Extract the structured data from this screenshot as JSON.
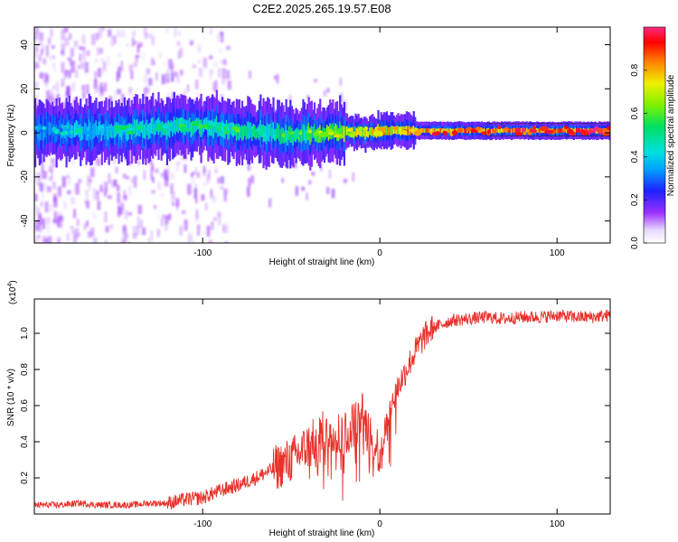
{
  "figure": {
    "title": "C2E2.2025.265.19.57.E08"
  },
  "chart_data": [
    {
      "type": "heatmap",
      "name": "spectrogram",
      "title": "C2E2.2025.265.19.57.E08",
      "xlabel": "Height of straight line (km)",
      "ylabel": "Frequency (Hz)",
      "xlim": [
        -195,
        130
      ],
      "ylim": [
        -50,
        48
      ],
      "xticks": [
        -100,
        0,
        100
      ],
      "yticks": [
        -40,
        -20,
        0,
        20,
        40
      ],
      "grid": false,
      "colorbar": {
        "label": "Normalized spectral amplitude",
        "range": [
          0,
          1
        ],
        "ticks": [
          0.0,
          0.2,
          0.4,
          0.6,
          0.8
        ],
        "colormap": "rainbow"
      },
      "ridge_frequency_hz": {
        "x": [
          -195,
          -150,
          -100,
          -50,
          -20,
          0,
          50,
          100,
          130
        ],
        "y": [
          1,
          1,
          3,
          -1,
          0,
          1,
          1,
          1,
          1
        ]
      },
      "ridge_amplitude": {
        "x": [
          -195,
          -150,
          -100,
          -50,
          -20,
          0,
          50,
          100,
          130
        ],
        "y": [
          0.35,
          0.45,
          0.5,
          0.55,
          0.7,
          0.8,
          0.9,
          0.92,
          0.92
        ]
      }
    },
    {
      "type": "line",
      "name": "snr",
      "xlabel": "Height of straight line (km)",
      "ylabel": "SNR (10 * v/v)",
      "yscale_label": "(x10",
      "yscale_exponent": "4",
      "xlim": [
        -195,
        130
      ],
      "ylim": [
        0,
        1.19
      ],
      "xticks": [
        -100,
        0,
        100
      ],
      "yticks": [
        0.2,
        0.4,
        0.6,
        0.8,
        1.0
      ],
      "grid": false,
      "color": "#e8302a",
      "series": [
        {
          "name": "SNR",
          "x": [
            -195,
            -180,
            -170,
            -160,
            -150,
            -140,
            -130,
            -120,
            -110,
            -100,
            -90,
            -80,
            -70,
            -60,
            -50,
            -40,
            -30,
            -25,
            -20,
            -15,
            -10,
            -5,
            0,
            5,
            10,
            15,
            20,
            25,
            30,
            40,
            50,
            60,
            70,
            80,
            90,
            100,
            110,
            120,
            130
          ],
          "y": [
            0.05,
            0.05,
            0.06,
            0.05,
            0.05,
            0.05,
            0.06,
            0.06,
            0.08,
            0.09,
            0.13,
            0.16,
            0.2,
            0.25,
            0.3,
            0.38,
            0.46,
            0.45,
            0.44,
            0.5,
            0.55,
            0.4,
            0.35,
            0.55,
            0.7,
            0.8,
            0.9,
            0.98,
            1.03,
            1.07,
            1.08,
            1.09,
            1.08,
            1.09,
            1.09,
            1.1,
            1.09,
            1.09,
            1.1
          ]
        }
      ]
    }
  ]
}
